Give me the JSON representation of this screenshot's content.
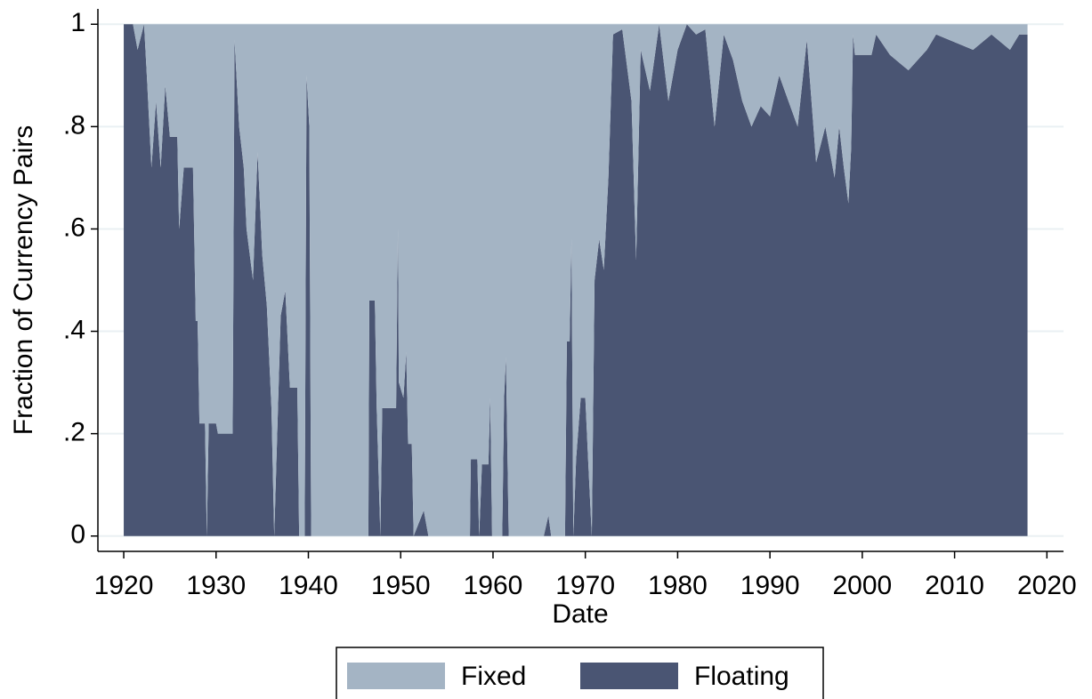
{
  "chart_data": {
    "type": "area",
    "xlabel": "Date",
    "ylabel": "Fraction of Currency Pairs",
    "x": [
      1920,
      1921,
      1921.5,
      1922.2,
      1922.5,
      1923,
      1923.5,
      1924,
      1924.5,
      1925,
      1925.8,
      1926,
      1926.5,
      1927.5,
      1927.8,
      1928,
      1928.2,
      1928.8,
      1929,
      1929.2,
      1930,
      1930.2,
      1931.8,
      1932,
      1932.5,
      1933,
      1933.3,
      1934,
      1934.5,
      1935,
      1935.5,
      1936,
      1936.3,
      1937,
      1937.5,
      1938,
      1938.8,
      1939,
      1939.6,
      1939.8,
      1940.1,
      1940.3,
      1946.5,
      1946.6,
      1947.2,
      1947.4,
      1947.8,
      1948,
      1949.5,
      1949.7,
      1949.8,
      1950.3,
      1950.6,
      1950.8,
      1951.2,
      1951.4,
      1952.5,
      1953,
      1957.5,
      1957.6,
      1958.3,
      1958.5,
      1958.8,
      1959.5,
      1959.7,
      1959.9,
      1961,
      1961.2,
      1961.4,
      1961.7,
      1965.5,
      1966,
      1966.3,
      1967.8,
      1968,
      1968.3,
      1968.5,
      1968.7,
      1969,
      1969.5,
      1970,
      1970.3,
      1970.7,
      1971,
      1971.5,
      1972,
      1972.5,
      1973,
      1974,
      1975,
      1975.5,
      1976,
      1977,
      1978,
      1979,
      1980,
      1981,
      1982,
      1983,
      1984,
      1985,
      1986,
      1987,
      1988,
      1989,
      1990,
      1991,
      1992,
      1993,
      1994,
      1995,
      1996,
      1997,
      1997.5,
      1998,
      1998.5,
      1998.8,
      1999,
      1999.2,
      2001,
      2001.5,
      2003,
      2005,
      2007,
      2008,
      2012,
      2014,
      2016,
      2017,
      2017.9
    ],
    "series": [
      {
        "name": "Fixed",
        "color": "#a4b4c4",
        "values": [
          0,
          0,
          0.05,
          0,
          0.1,
          0.28,
          0.15,
          0.28,
          0.12,
          0.22,
          0.22,
          0.4,
          0.28,
          0.28,
          0.58,
          0.58,
          0.78,
          0.78,
          1,
          0.78,
          0.78,
          0.8,
          0.8,
          0.03,
          0.2,
          0.28,
          0.4,
          0.5,
          0.25,
          0.45,
          0.55,
          0.75,
          1,
          0.57,
          0.52,
          0.71,
          0.71,
          1,
          1,
          0.1,
          0.2,
          1,
          1,
          0.54,
          0.54,
          0.75,
          1,
          0.75,
          0.75,
          0.4,
          0.7,
          0.73,
          0.64,
          0.82,
          0.82,
          1,
          0.95,
          1,
          1,
          0.85,
          0.85,
          1,
          0.86,
          0.86,
          0.73,
          1,
          1,
          0.73,
          0.65,
          1,
          1,
          0.96,
          1,
          1,
          0.62,
          0.62,
          0.42,
          1,
          0.85,
          0.73,
          0.73,
          0.85,
          1,
          0.5,
          0.42,
          0.48,
          0.3,
          0.02,
          0.01,
          0.15,
          0.46,
          0.05,
          0.13,
          0,
          0.15,
          0.05,
          0,
          0.02,
          0.01,
          0.2,
          0.02,
          0.07,
          0.15,
          0.2,
          0.16,
          0.18,
          0.1,
          0.15,
          0.2,
          0.03,
          0.27,
          0.2,
          0.3,
          0.2,
          0.28,
          0.35,
          0.24,
          0.02,
          0.06,
          0.06,
          0.02,
          0.06,
          0.09,
          0.05,
          0.02,
          0.05,
          0.02,
          0.05,
          0.02,
          0.02
        ]
      },
      {
        "name": "Floating",
        "color": "#4a5573",
        "values": [
          1,
          1,
          0.95,
          1,
          0.9,
          0.72,
          0.85,
          0.72,
          0.88,
          0.78,
          0.78,
          0.6,
          0.72,
          0.72,
          0.42,
          0.42,
          0.22,
          0.22,
          0,
          0.22,
          0.22,
          0.2,
          0.2,
          0.97,
          0.8,
          0.72,
          0.6,
          0.5,
          0.75,
          0.55,
          0.45,
          0.25,
          0,
          0.43,
          0.48,
          0.29,
          0.29,
          0,
          0,
          0.9,
          0.8,
          0,
          0,
          0.46,
          0.46,
          0.25,
          0,
          0.25,
          0.25,
          0.6,
          0.3,
          0.27,
          0.36,
          0.18,
          0.18,
          0,
          0.05,
          0,
          0,
          0.15,
          0.15,
          0,
          0.14,
          0.14,
          0.27,
          0,
          0,
          0.27,
          0.35,
          0,
          0,
          0.04,
          0,
          0,
          0.38,
          0.38,
          0.58,
          0,
          0.15,
          0.27,
          0.27,
          0.15,
          0,
          0.5,
          0.58,
          0.52,
          0.7,
          0.98,
          0.99,
          0.85,
          0.54,
          0.95,
          0.87,
          1,
          0.85,
          0.95,
          1,
          0.98,
          0.99,
          0.8,
          0.98,
          0.93,
          0.85,
          0.8,
          0.84,
          0.82,
          0.9,
          0.85,
          0.8,
          0.97,
          0.73,
          0.8,
          0.7,
          0.8,
          0.72,
          0.65,
          0.76,
          0.98,
          0.94,
          0.94,
          0.98,
          0.94,
          0.91,
          0.95,
          0.98,
          0.95,
          0.98,
          0.95,
          0.98,
          0.98
        ]
      }
    ],
    "xlim": [
      1917.2,
      2021.8
    ],
    "xticks": [
      1920,
      1930,
      1940,
      1950,
      1960,
      1970,
      1980,
      1990,
      2000,
      2010,
      2020
    ],
    "ylim": [
      -0.03,
      1.03
    ],
    "yticks": [
      0,
      {
        "value": 0.2,
        "label": ".2"
      },
      {
        "value": 0.4,
        "label": ".4"
      },
      {
        "value": 0.6,
        "label": ".6"
      },
      {
        "value": 0.8,
        "label": ".8"
      },
      1
    ],
    "grid": true,
    "legend": "bottom"
  }
}
